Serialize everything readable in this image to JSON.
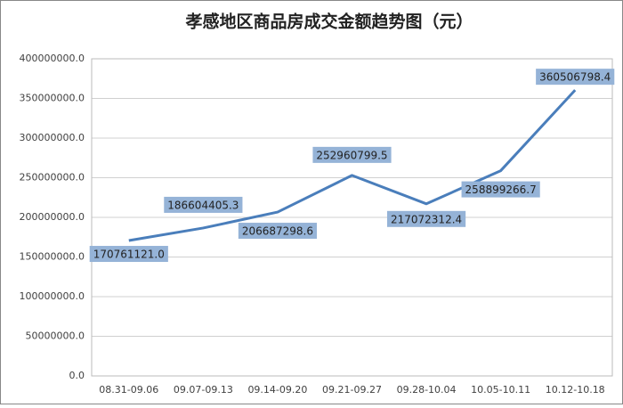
{
  "chart_data": {
    "type": "line",
    "title": "孝感地区商品房成交金额趋势图（元）",
    "categories": [
      "08.31-09.06",
      "09.07-09.13",
      "09.14-09.20",
      "09.21-09.27",
      "09.28-10.04",
      "10.05-10.11",
      "10.12-10.18"
    ],
    "series": [
      {
        "name": "成交金额",
        "color": "#4a7ebb",
        "values": [
          170761121.0,
          186604405.3,
          206687298.6,
          252960799.5,
          217072312.4,
          258899266.7,
          360506798.4
        ],
        "value_labels": [
          "170761121.0",
          "186604405.3",
          "206687298.6",
          "252960799.5",
          "217072312.4",
          "258899266.7",
          "360506798.4"
        ]
      }
    ],
    "ylim": [
      0,
      400000000
    ],
    "yticks": [
      {
        "value": 0,
        "label": "0.0"
      },
      {
        "value": 50000000,
        "label": "50000000.0"
      },
      {
        "value": 100000000,
        "label": "100000000.0"
      },
      {
        "value": 150000000,
        "label": "150000000.0"
      },
      {
        "value": 200000000,
        "label": "200000000.0"
      },
      {
        "value": 250000000,
        "label": "250000000.0"
      },
      {
        "value": 300000000,
        "label": "300000000.0"
      },
      {
        "value": 350000000,
        "label": "350000000.0"
      },
      {
        "value": 400000000,
        "label": "400000000.0"
      }
    ],
    "grid": true
  }
}
